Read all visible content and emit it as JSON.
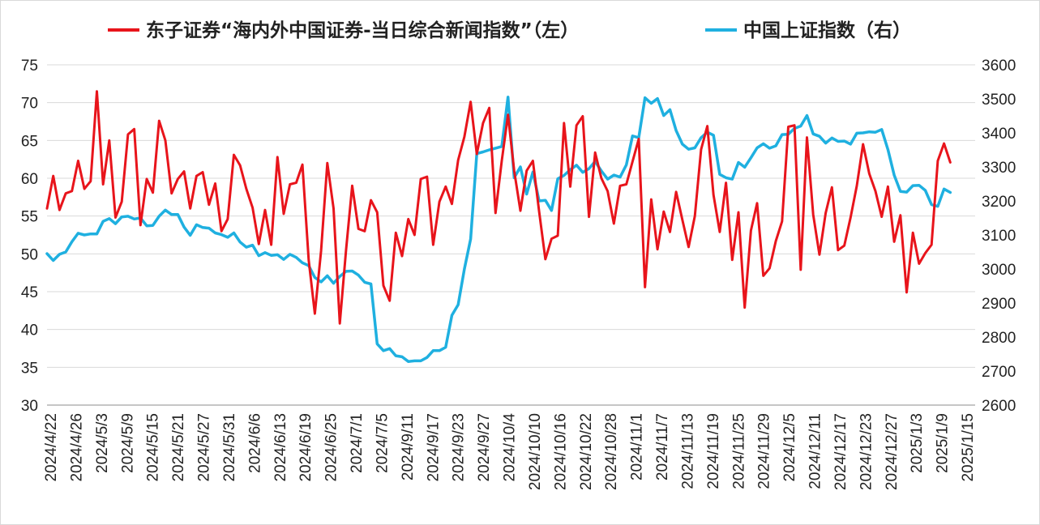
{
  "chart_data": {
    "type": "line",
    "title": "",
    "legend_position": "top",
    "grid": true,
    "y_left": {
      "min": 30,
      "max": 75,
      "step": 5,
      "ticks": [
        "30",
        "35",
        "40",
        "45",
        "50",
        "55",
        "60",
        "65",
        "70",
        "75"
      ]
    },
    "y_right": {
      "min": 2600,
      "max": 3600,
      "step": 100,
      "ticks": [
        "2600",
        "2700",
        "2800",
        "2900",
        "3000",
        "3100",
        "3200",
        "3300",
        "3400",
        "3500",
        "3600"
      ]
    },
    "x_tick_labels": [
      "2024/4/22",
      "2024/4/26",
      "2024/5/3",
      "2024/5/9",
      "2024/5/15",
      "2024/5/21",
      "2024/5/27",
      "2024/5/31",
      "2024/6/6",
      "2024/6/13",
      "2024/6/19",
      "2024/6/25",
      "2024/7/1",
      "2024/7/5",
      "2024/9/11",
      "2024/9/17",
      "2024/9/23",
      "2024/9/27",
      "2024/10/4",
      "2024/10/10",
      "2024/10/16",
      "2024/10/22",
      "2024/10/28",
      "2024/11/1",
      "2024/11/7",
      "2024/11/13",
      "2024/11/19",
      "2024/11/25",
      "2024/11/29",
      "2024/12/5",
      "2024/12/11",
      "2024/12/17",
      "2024/12/23",
      "2024/12/27",
      "2025/1/3",
      "2025/1/9",
      "2025/1/15"
    ],
    "n_points": 150,
    "series": [
      {
        "name": "东子证券“海内外中国证券-当日综合新闻指数”（左）",
        "axis": "left",
        "color": "#e8141b",
        "values": [
          56.0,
          60.3,
          55.8,
          58.0,
          58.3,
          62.3,
          58.6,
          59.6,
          71.5,
          59.2,
          65.0,
          54.8,
          56.9,
          65.8,
          66.5,
          53.8,
          59.9,
          58.1,
          67.6,
          65.0,
          58.0,
          59.9,
          60.9,
          56.0,
          60.3,
          60.8,
          56.5,
          59.3,
          53.0,
          54.6,
          63.1,
          61.7,
          58.6,
          56.1,
          51.3,
          55.8,
          51.2,
          62.8,
          55.3,
          59.2,
          59.4,
          61.8,
          49.2,
          42.1,
          50.4,
          62.0,
          56.0,
          40.8,
          50.5,
          59.0,
          53.3,
          53.0,
          57.1,
          55.5,
          45.8,
          43.8,
          52.8,
          49.7,
          54.6,
          52.5,
          59.9,
          60.2,
          51.2,
          56.9,
          58.9,
          56.6,
          62.4,
          65.5,
          70.1,
          63.2,
          67.3,
          69.3,
          55.4,
          62.3,
          68.4,
          61.0,
          55.7,
          61.0,
          62.3,
          55.6,
          49.3,
          52.0,
          52.4,
          67.3,
          58.9,
          67.0,
          68.2,
          54.9,
          63.4,
          60.0,
          58.3,
          54.0,
          59.0,
          59.2,
          62.2,
          65.2,
          45.6,
          57.2,
          50.6,
          55.6,
          52.9,
          58.2,
          54.5,
          50.9,
          55.0,
          63.8,
          66.9,
          57.8,
          52.9,
          59.4,
          49.2,
          55.5,
          42.9,
          53.1,
          56.7,
          47.1,
          48.1,
          51.7,
          54.3,
          66.8,
          67.0,
          47.9,
          65.4,
          55.2,
          49.9,
          55.4,
          58.8,
          50.5,
          51.1,
          54.8,
          59.0,
          64.5,
          60.6,
          58.3,
          54.9,
          58.9,
          51.6,
          55.1,
          44.9,
          52.8,
          48.7,
          50.1,
          51.2,
          62.3,
          64.6,
          62.1
        ]
      },
      {
        "name": "中国上证指数（右）",
        "axis": "right",
        "color": "#1fb0e0",
        "values": [
          3045,
          3025,
          3043,
          3050,
          3080,
          3105,
          3100,
          3103,
          3103,
          3140,
          3148,
          3133,
          3153,
          3155,
          3147,
          3150,
          3127,
          3128,
          3155,
          3173,
          3160,
          3160,
          3123,
          3099,
          3130,
          3122,
          3120,
          3106,
          3101,
          3093,
          3106,
          3079,
          3064,
          3070,
          3039,
          3048,
          3040,
          3042,
          3028,
          3043,
          3034,
          3018,
          3010,
          2975,
          2962,
          2980,
          2958,
          2978,
          2993,
          2994,
          2982,
          2961,
          2956,
          2780,
          2760,
          2766,
          2745,
          2742,
          2728,
          2730,
          2730,
          2740,
          2760,
          2760,
          2770,
          2864,
          2895,
          3000,
          3088,
          3339,
          3344,
          3350,
          3355,
          3360,
          3505,
          3268,
          3300,
          3220,
          3285,
          3200,
          3202,
          3172,
          3265,
          3275,
          3292,
          3305,
          3284,
          3295,
          3316,
          3288,
          3264,
          3276,
          3270,
          3306,
          3391,
          3386,
          3503,
          3487,
          3501,
          3451,
          3468,
          3407,
          3367,
          3352,
          3356,
          3386,
          3402,
          3393,
          3278,
          3268,
          3264,
          3313,
          3299,
          3327,
          3356,
          3368,
          3355,
          3362,
          3395,
          3396,
          3413,
          3420,
          3451,
          3397,
          3390,
          3370,
          3385,
          3375,
          3376,
          3367,
          3399,
          3400,
          3403,
          3402,
          3410,
          3351,
          3276,
          3228,
          3226,
          3245,
          3246,
          3231,
          3189,
          3184,
          3235,
          3225
        ]
      }
    ]
  }
}
